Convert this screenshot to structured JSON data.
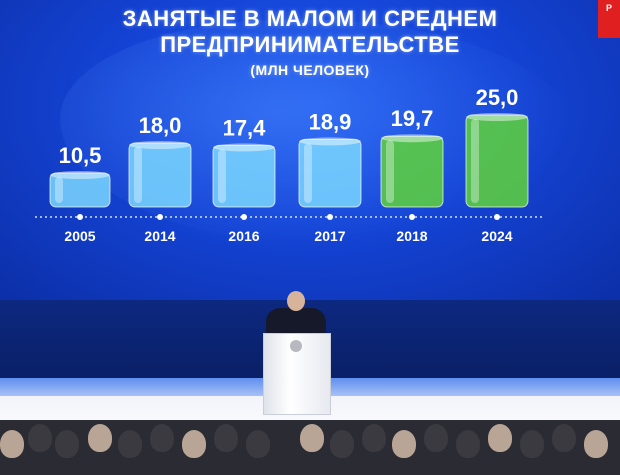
{
  "title": {
    "line1": "ЗАНЯТЫЕ В МАЛОМ И СРЕДНЕМ",
    "line2": "ПРЕДПРИНИМАТЕЛЬСТВЕ",
    "unit": "(МЛН ЧЕЛОВЕК)"
  },
  "channel_logo": "Р",
  "chart_data": {
    "type": "bar",
    "title": "ЗАНЯТЫЕ В МАЛОМ И СРЕДНЕМ ПРЕДПРИНИМАТЕЛЬСТВЕ",
    "subtitle": "(МЛН ЧЕЛОВЕК)",
    "categories": [
      "2005",
      "2014",
      "2016",
      "2017",
      "2018",
      "2024"
    ],
    "values": [
      10.5,
      18.0,
      17.4,
      18.9,
      19.7,
      25.0
    ],
    "value_labels": [
      "10,5",
      "18,0",
      "17,4",
      "18,9",
      "19,7",
      "25,0"
    ],
    "bar_colors": [
      "#7ad7ff",
      "#7ad7ff",
      "#7ad7ff",
      "#7ad7ff",
      "#5fd43a",
      "#5fd43a"
    ],
    "xlabel": "",
    "ylabel": "",
    "grid": false
  }
}
